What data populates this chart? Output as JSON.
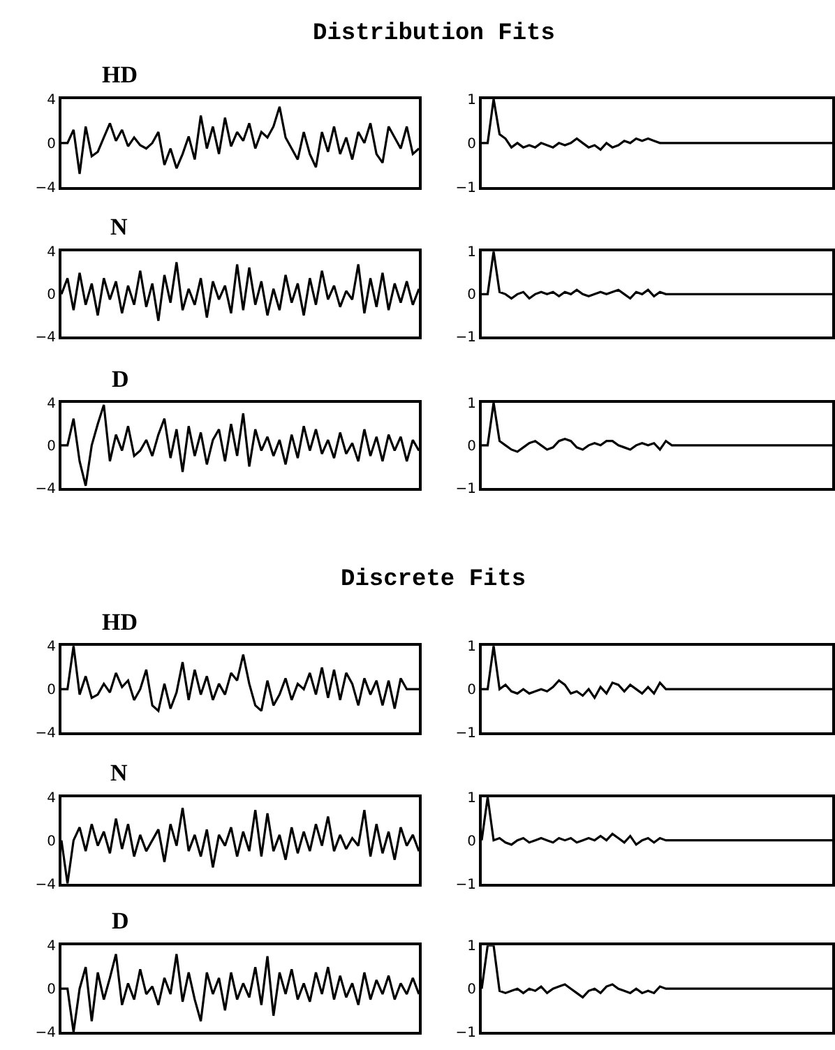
{
  "chart_data": [
    {
      "type": "line",
      "title": "HD",
      "annotations": [
        "Distribution Fits"
      ],
      "tick_labels": "y",
      "color": "#000000",
      "ylim": [
        -4,
        4
      ],
      "yticks": [
        -4,
        0,
        4
      ],
      "categories": [
        null,
        null,
        null,
        null,
        null,
        null,
        null,
        null,
        null,
        null,
        null,
        null,
        null,
        null,
        null,
        null,
        null,
        null,
        null,
        null,
        null,
        null,
        null,
        null,
        null,
        null,
        null,
        null,
        null,
        null,
        null,
        null,
        null,
        null,
        null,
        null,
        null,
        null,
        null,
        null,
        null,
        null,
        null,
        null,
        null,
        null,
        null,
        null,
        null,
        null,
        null,
        null,
        null,
        null,
        null,
        null,
        null,
        null,
        null,
        null
      ],
      "values": [
        0,
        0,
        1.2,
        -2.8,
        1.5,
        -1.2,
        -0.8,
        0.5,
        1.8,
        0.2,
        1.2,
        -0.3,
        0.5,
        -0.2,
        -0.5,
        0,
        1,
        -2,
        -0.5,
        -2.3,
        -1,
        0.6,
        -1.5,
        2.5,
        -0.5,
        1.5,
        -1,
        2.3,
        -0.3,
        1,
        0.2,
        1.8,
        -0.5,
        1,
        0.5,
        1.5,
        3.3,
        0.5,
        -0.5,
        -1.5,
        1,
        -1,
        -2.2,
        1,
        -0.8,
        1.5,
        -1,
        0.5,
        -1.5,
        1,
        0,
        1.8,
        -1,
        -1.8,
        1.5,
        0.5,
        -0.5,
        1.5,
        -1,
        -0.5
      ]
    },
    {
      "type": "line",
      "tick_labels": "y",
      "color": "#000000",
      "ylim": [
        -1,
        1
      ],
      "yticks": [
        -1,
        0,
        1
      ],
      "categories": [
        null,
        null,
        null,
        null,
        null,
        null,
        null,
        null,
        null,
        null,
        null,
        null,
        null,
        null,
        null,
        null,
        null,
        null,
        null,
        null,
        null,
        null,
        null,
        null,
        null,
        null,
        null,
        null,
        null,
        null,
        null,
        null,
        null,
        null,
        null,
        null,
        null,
        null,
        null,
        null,
        null,
        null,
        null,
        null,
        null,
        null,
        null,
        null,
        null,
        null,
        null,
        null,
        null,
        null,
        null,
        null,
        null,
        null,
        null,
        null
      ],
      "values": [
        0,
        0,
        1,
        0.2,
        0.1,
        -0.1,
        0,
        -0.1,
        -0.05,
        -0.1,
        0,
        -0.05,
        -0.1,
        0,
        -0.05,
        0,
        0.1,
        0,
        -0.1,
        -0.05,
        -0.15,
        0,
        -0.1,
        -0.05,
        0.05,
        0,
        0.1,
        0.05,
        0.1,
        0.05,
        0,
        0,
        0,
        0,
        0,
        0,
        0,
        0,
        0,
        0,
        0,
        0,
        0,
        0,
        0,
        0,
        0,
        0,
        0,
        0,
        0,
        0,
        0,
        0,
        0,
        0,
        0,
        0,
        0,
        0
      ]
    },
    {
      "type": "line",
      "title": "N",
      "tick_labels": "y",
      "color": "#000000",
      "ylim": [
        -4,
        4
      ],
      "yticks": [
        -4,
        0,
        4
      ],
      "categories": [
        null,
        null,
        null,
        null,
        null,
        null,
        null,
        null,
        null,
        null,
        null,
        null,
        null,
        null,
        null,
        null,
        null,
        null,
        null,
        null,
        null,
        null,
        null,
        null,
        null,
        null,
        null,
        null,
        null,
        null,
        null,
        null,
        null,
        null,
        null,
        null,
        null,
        null,
        null,
        null,
        null,
        null,
        null,
        null,
        null,
        null,
        null,
        null,
        null,
        null,
        null,
        null,
        null,
        null,
        null,
        null,
        null,
        null,
        null,
        null
      ],
      "values": [
        0,
        1.5,
        -1.5,
        2,
        -1,
        1,
        -2,
        1.5,
        -0.5,
        1.2,
        -1.8,
        0.8,
        -1,
        2.2,
        -1.2,
        1,
        -2.5,
        1.8,
        -0.8,
        3,
        -1.5,
        0.5,
        -1,
        1.5,
        -2.2,
        1.2,
        -0.5,
        0.8,
        -1.8,
        2.8,
        -1.5,
        2.5,
        -1,
        1.2,
        -2,
        0.5,
        -1.5,
        1.8,
        -0.8,
        1,
        -2,
        1.5,
        -1,
        2.2,
        -0.5,
        0.8,
        -1.2,
        0.3,
        -0.5,
        2.8,
        -1.8,
        1.5,
        -1.2,
        2,
        -1.5,
        1,
        -0.8,
        1.2,
        -1,
        0.5
      ]
    },
    {
      "type": "line",
      "tick_labels": "y",
      "color": "#000000",
      "ylim": [
        -1,
        1
      ],
      "yticks": [
        -1,
        0,
        1
      ],
      "categories": [
        null,
        null,
        null,
        null,
        null,
        null,
        null,
        null,
        null,
        null,
        null,
        null,
        null,
        null,
        null,
        null,
        null,
        null,
        null,
        null,
        null,
        null,
        null,
        null,
        null,
        null,
        null,
        null,
        null,
        null,
        null,
        null,
        null,
        null,
        null,
        null,
        null,
        null,
        null,
        null,
        null,
        null,
        null,
        null,
        null,
        null,
        null,
        null,
        null,
        null,
        null,
        null,
        null,
        null,
        null,
        null,
        null,
        null,
        null,
        null
      ],
      "values": [
        0,
        0,
        1,
        0.05,
        0,
        -0.1,
        0,
        0.05,
        -0.1,
        0,
        0.05,
        0,
        0.05,
        -0.05,
        0.05,
        0,
        0.1,
        0,
        -0.05,
        0,
        0.05,
        0,
        0.05,
        0.1,
        0,
        -0.1,
        0.05,
        0,
        0.1,
        -0.05,
        0.05,
        0,
        0,
        0,
        0,
        0,
        0,
        0,
        0,
        0,
        0,
        0,
        0,
        0,
        0,
        0,
        0,
        0,
        0,
        0,
        0,
        0,
        0,
        0,
        0,
        0,
        0,
        0,
        0,
        0
      ]
    },
    {
      "type": "line",
      "title": "D",
      "tick_labels": "y",
      "color": "#000000",
      "ylim": [
        -4,
        4
      ],
      "yticks": [
        -4,
        0,
        4
      ],
      "categories": [
        null,
        null,
        null,
        null,
        null,
        null,
        null,
        null,
        null,
        null,
        null,
        null,
        null,
        null,
        null,
        null,
        null,
        null,
        null,
        null,
        null,
        null,
        null,
        null,
        null,
        null,
        null,
        null,
        null,
        null,
        null,
        null,
        null,
        null,
        null,
        null,
        null,
        null,
        null,
        null,
        null,
        null,
        null,
        null,
        null,
        null,
        null,
        null,
        null,
        null,
        null,
        null,
        null,
        null,
        null,
        null,
        null,
        null,
        null,
        null
      ],
      "values": [
        0,
        0,
        2.5,
        -1.5,
        -3.8,
        0,
        2,
        3.8,
        -1.5,
        1,
        -0.5,
        1.8,
        -1,
        -0.5,
        0.5,
        -1,
        1,
        2.5,
        -1.2,
        1.5,
        -2.5,
        1.8,
        -1,
        1.2,
        -1.8,
        0.5,
        1.5,
        -1.5,
        2,
        -1,
        3,
        -2,
        1.5,
        -0.5,
        0.8,
        -1,
        0.5,
        -1.8,
        1,
        -1.2,
        1.8,
        -0.5,
        1.5,
        -0.8,
        0.5,
        -1.2,
        1.2,
        -0.8,
        0.2,
        -1.5,
        1.5,
        -1,
        0.8,
        -1.5,
        1,
        -0.5,
        0.8,
        -1.5,
        0.5,
        -0.5
      ]
    },
    {
      "type": "line",
      "tick_labels": "y",
      "color": "#000000",
      "ylim": [
        -1,
        1
      ],
      "yticks": [
        -1,
        0,
        1
      ],
      "categories": [
        null,
        null,
        null,
        null,
        null,
        null,
        null,
        null,
        null,
        null,
        null,
        null,
        null,
        null,
        null,
        null,
        null,
        null,
        null,
        null,
        null,
        null,
        null,
        null,
        null,
        null,
        null,
        null,
        null,
        null,
        null,
        null,
        null,
        null,
        null,
        null,
        null,
        null,
        null,
        null,
        null,
        null,
        null,
        null,
        null,
        null,
        null,
        null,
        null,
        null,
        null,
        null,
        null,
        null,
        null,
        null,
        null,
        null,
        null,
        null
      ],
      "values": [
        0,
        0,
        1,
        0.1,
        0,
        -0.1,
        -0.15,
        -0.05,
        0.05,
        0.1,
        0,
        -0.1,
        -0.05,
        0.1,
        0.15,
        0.1,
        -0.05,
        -0.1,
        0,
        0.05,
        0,
        0.1,
        0.1,
        0,
        -0.05,
        -0.1,
        0,
        0.05,
        0,
        0.05,
        -0.1,
        0.1,
        0,
        0,
        0,
        0,
        0,
        0,
        0,
        0,
        0,
        0,
        0,
        0,
        0,
        0,
        0,
        0,
        0,
        0,
        0,
        0,
        0,
        0,
        0,
        0,
        0,
        0,
        0,
        0
      ]
    },
    {
      "type": "line",
      "title": "HD",
      "annotations": [
        "Discrete Fits"
      ],
      "tick_labels": "y",
      "color": "#000000",
      "ylim": [
        -4,
        4
      ],
      "yticks": [
        -4,
        0,
        4
      ],
      "categories": [
        null,
        null,
        null,
        null,
        null,
        null,
        null,
        null,
        null,
        null,
        null,
        null,
        null,
        null,
        null,
        null,
        null,
        null,
        null,
        null,
        null,
        null,
        null,
        null,
        null,
        null,
        null,
        null,
        null,
        null,
        null,
        null,
        null,
        null,
        null,
        null,
        null,
        null,
        null,
        null,
        null,
        null,
        null,
        null,
        null,
        null,
        null,
        null,
        null,
        null,
        null,
        null,
        null,
        null,
        null,
        null,
        null,
        null,
        null,
        null
      ],
      "values": [
        0,
        0,
        4,
        -0.5,
        1.2,
        -0.8,
        -0.5,
        0.5,
        -0.3,
        1.5,
        0.2,
        0.8,
        -1,
        0,
        1.8,
        -1.5,
        -2,
        0.5,
        -1.8,
        -0.3,
        2.5,
        -1,
        1.8,
        -0.5,
        1.2,
        -1,
        0.5,
        -0.5,
        1.5,
        0.8,
        3.2,
        0.5,
        -1.5,
        -2,
        0.8,
        -1.5,
        -0.5,
        1,
        -1,
        0.5,
        0,
        1.5,
        -0.5,
        2,
        -0.8,
        1.8,
        -1,
        1.5,
        0.5,
        -1.5,
        1,
        -0.5,
        0.8,
        -1.5,
        0.8,
        -1.8,
        1,
        0,
        0,
        0
      ]
    },
    {
      "type": "line",
      "tick_labels": "y",
      "color": "#000000",
      "ylim": [
        -1,
        1
      ],
      "yticks": [
        -1,
        0,
        1
      ],
      "categories": [
        null,
        null,
        null,
        null,
        null,
        null,
        null,
        null,
        null,
        null,
        null,
        null,
        null,
        null,
        null,
        null,
        null,
        null,
        null,
        null,
        null,
        null,
        null,
        null,
        null,
        null,
        null,
        null,
        null,
        null,
        null,
        null,
        null,
        null,
        null,
        null,
        null,
        null,
        null,
        null,
        null,
        null,
        null,
        null,
        null,
        null,
        null,
        null,
        null,
        null,
        null,
        null,
        null,
        null,
        null,
        null,
        null,
        null,
        null,
        null
      ],
      "values": [
        0,
        0,
        1,
        0,
        0.1,
        -0.05,
        -0.1,
        0,
        -0.1,
        -0.05,
        0,
        -0.05,
        0.05,
        0.2,
        0.1,
        -0.1,
        -0.05,
        -0.15,
        0,
        -0.2,
        0.05,
        -0.1,
        0.15,
        0.1,
        -0.05,
        0.1,
        0,
        -0.1,
        0.05,
        -0.1,
        0.15,
        0,
        0,
        0,
        0,
        0,
        0,
        0,
        0,
        0,
        0,
        0,
        0,
        0,
        0,
        0,
        0,
        0,
        0,
        0,
        0,
        0,
        0,
        0,
        0,
        0,
        0,
        0,
        0,
        0
      ]
    },
    {
      "type": "line",
      "title": "N",
      "tick_labels": "y",
      "color": "#000000",
      "ylim": [
        -4,
        4
      ],
      "yticks": [
        -4,
        0,
        4
      ],
      "categories": [
        null,
        null,
        null,
        null,
        null,
        null,
        null,
        null,
        null,
        null,
        null,
        null,
        null,
        null,
        null,
        null,
        null,
        null,
        null,
        null,
        null,
        null,
        null,
        null,
        null,
        null,
        null,
        null,
        null,
        null,
        null,
        null,
        null,
        null,
        null,
        null,
        null,
        null,
        null,
        null,
        null,
        null,
        null,
        null,
        null,
        null,
        null,
        null,
        null,
        null,
        null,
        null,
        null,
        null,
        null,
        null,
        null,
        null,
        null,
        null
      ],
      "values": [
        0,
        -4,
        0,
        1.2,
        -1,
        1.5,
        -0.5,
        0.8,
        -1.2,
        2,
        -0.8,
        1.5,
        -1.5,
        0.5,
        -1,
        0,
        1,
        -2,
        1.5,
        -0.5,
        3,
        -1,
        0.5,
        -1.5,
        1,
        -2.5,
        0.5,
        -0.5,
        1.2,
        -1.5,
        0.8,
        -1,
        2.8,
        -1.5,
        2.5,
        -1,
        0.5,
        -1.8,
        1.2,
        -1.2,
        0.8,
        -1,
        1.5,
        -0.5,
        2.2,
        -1,
        0.5,
        -0.8,
        0.2,
        -0.5,
        2.8,
        -1.5,
        1.5,
        -1.2,
        0.8,
        -1.8,
        1.2,
        -0.5,
        0.5,
        -1
      ]
    },
    {
      "type": "line",
      "tick_labels": "y",
      "color": "#000000",
      "ylim": [
        -1,
        1
      ],
      "yticks": [
        -1,
        0,
        1
      ],
      "categories": [
        null,
        null,
        null,
        null,
        null,
        null,
        null,
        null,
        null,
        null,
        null,
        null,
        null,
        null,
        null,
        null,
        null,
        null,
        null,
        null,
        null,
        null,
        null,
        null,
        null,
        null,
        null,
        null,
        null,
        null,
        null,
        null,
        null,
        null,
        null,
        null,
        null,
        null,
        null,
        null,
        null,
        null,
        null,
        null,
        null,
        null,
        null,
        null,
        null,
        null,
        null,
        null,
        null,
        null,
        null,
        null,
        null,
        null,
        null,
        null
      ],
      "values": [
        0,
        1,
        0,
        0.05,
        -0.05,
        -0.1,
        0,
        0.05,
        -0.05,
        0,
        0.05,
        0,
        -0.05,
        0.05,
        0,
        0.05,
        -0.05,
        0,
        0.05,
        0,
        0.1,
        0,
        0.15,
        0.05,
        -0.05,
        0.1,
        -0.1,
        0,
        0.05,
        -0.05,
        0.05,
        0,
        0,
        0,
        0,
        0,
        0,
        0,
        0,
        0,
        0,
        0,
        0,
        0,
        0,
        0,
        0,
        0,
        0,
        0,
        0,
        0,
        0,
        0,
        0,
        0,
        0,
        0,
        0,
        0
      ]
    },
    {
      "type": "line",
      "title": "D",
      "tick_labels": "y",
      "color": "#000000",
      "ylim": [
        -4,
        4
      ],
      "yticks": [
        -4,
        0,
        4
      ],
      "categories": [
        null,
        null,
        null,
        null,
        null,
        null,
        null,
        null,
        null,
        null,
        null,
        null,
        null,
        null,
        null,
        null,
        null,
        null,
        null,
        null,
        null,
        null,
        null,
        null,
        null,
        null,
        null,
        null,
        null,
        null,
        null,
        null,
        null,
        null,
        null,
        null,
        null,
        null,
        null,
        null,
        null,
        null,
        null,
        null,
        null,
        null,
        null,
        null,
        null,
        null,
        null,
        null,
        null,
        null,
        null,
        null,
        null,
        null,
        null,
        null
      ],
      "values": [
        0,
        0,
        -4,
        0,
        2,
        -3,
        1.5,
        -1,
        1,
        3.2,
        -1.5,
        0.5,
        -1,
        1.8,
        -0.5,
        0.2,
        -1.5,
        1,
        -0.5,
        3.2,
        -1.2,
        1.5,
        -1,
        -3,
        1.5,
        -0.5,
        1,
        -2,
        1.5,
        -1,
        0.5,
        -0.8,
        2,
        -1.5,
        3,
        -2.5,
        1.5,
        -0.5,
        1.8,
        -1,
        0.5,
        -1.2,
        1.5,
        -0.5,
        2,
        -1,
        1.2,
        -0.8,
        0.5,
        -1.5,
        1.5,
        -1,
        0.8,
        -0.5,
        1.2,
        -1,
        0.5,
        -0.5,
        1,
        -0.5
      ]
    },
    {
      "type": "line",
      "tick_labels": "y",
      "color": "#000000",
      "ylim": [
        -1,
        1
      ],
      "yticks": [
        -1,
        0,
        1
      ],
      "categories": [
        null,
        null,
        null,
        null,
        null,
        null,
        null,
        null,
        null,
        null,
        null,
        null,
        null,
        null,
        null,
        null,
        null,
        null,
        null,
        null,
        null,
        null,
        null,
        null,
        null,
        null,
        null,
        null,
        null,
        null,
        null,
        null,
        null,
        null,
        null,
        null,
        null,
        null,
        null,
        null,
        null,
        null,
        null,
        null,
        null,
        null,
        null,
        null,
        null,
        null,
        null,
        null,
        null,
        null,
        null,
        null,
        null,
        null,
        null,
        null
      ],
      "values": [
        0,
        1,
        1,
        -0.05,
        -0.1,
        -0.05,
        0,
        -0.1,
        0,
        -0.05,
        0.05,
        -0.1,
        0,
        0.05,
        0.1,
        0,
        -0.1,
        -0.2,
        -0.05,
        0,
        -0.1,
        0.05,
        0.1,
        0,
        -0.05,
        -0.1,
        0,
        -0.1,
        -0.05,
        -0.1,
        0.05,
        0,
        0,
        0,
        0,
        0,
        0,
        0,
        0,
        0,
        0,
        0,
        0,
        0,
        0,
        0,
        0,
        0,
        0,
        0,
        0,
        0,
        0,
        0,
        0,
        0,
        0,
        0,
        0,
        0
      ]
    }
  ]
}
